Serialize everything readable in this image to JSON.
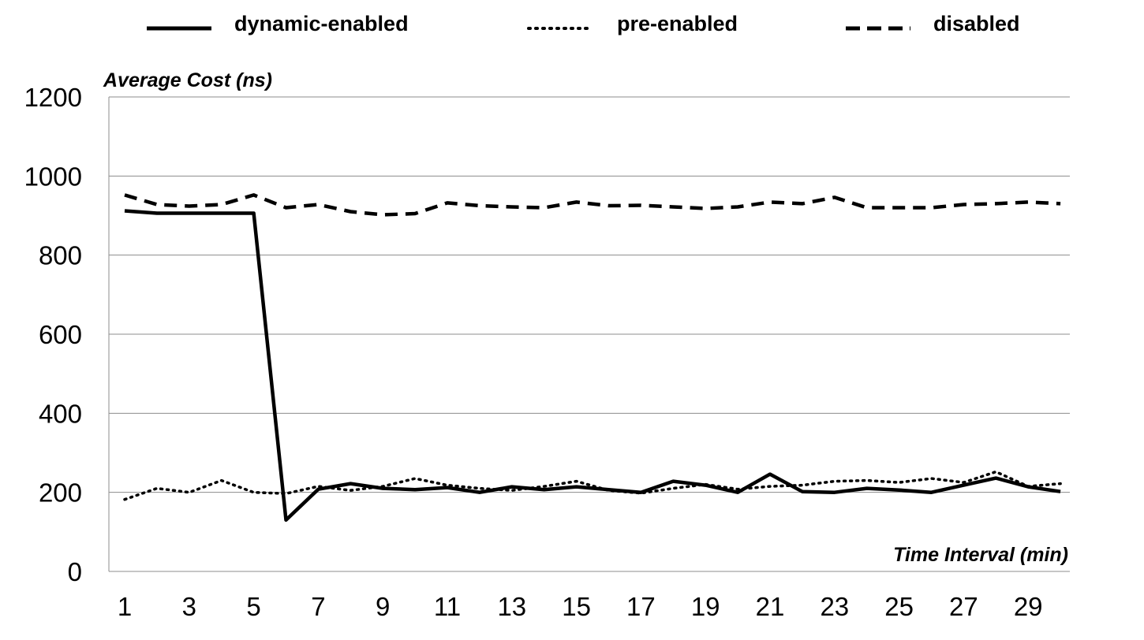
{
  "chart_data": {
    "type": "line",
    "title": "",
    "xlabel": "Time Interval (min)",
    "ylabel": "Average Cost (ns)",
    "ylim": [
      0,
      1200
    ],
    "y_ticks": [
      "0",
      "200",
      "400",
      "600",
      "800",
      "1000",
      "1200"
    ],
    "x": [
      1,
      2,
      3,
      4,
      5,
      6,
      7,
      8,
      9,
      10,
      11,
      12,
      13,
      14,
      15,
      16,
      17,
      18,
      19,
      20,
      21,
      22,
      23,
      24,
      25,
      26,
      27,
      28,
      29,
      30
    ],
    "x_tick_labels": [
      "1",
      "3",
      "5",
      "7",
      "9",
      "11",
      "13",
      "15",
      "17",
      "19",
      "21",
      "23",
      "25",
      "27",
      "29"
    ],
    "grid": "horizontal",
    "legend_position": "top",
    "series": [
      {
        "name": "dynamic-enabled",
        "style": "solid",
        "color": "#000000",
        "values": [
          912,
          906,
          906,
          906,
          906,
          130,
          208,
          222,
          210,
          207,
          212,
          200,
          214,
          207,
          214,
          207,
          200,
          228,
          218,
          200,
          246,
          202,
          200,
          210,
          206,
          200,
          218,
          236,
          214,
          202
        ]
      },
      {
        "name": "pre-enabled",
        "style": "dotted",
        "color": "#000000",
        "values": [
          182,
          210,
          200,
          230,
          200,
          197,
          215,
          205,
          215,
          235,
          218,
          210,
          205,
          215,
          228,
          205,
          198,
          210,
          220,
          208,
          215,
          218,
          228,
          230,
          225,
          235,
          225,
          252,
          215,
          222
        ]
      },
      {
        "name": "disabled",
        "style": "dashed",
        "color": "#000000",
        "values": [
          952,
          928,
          924,
          928,
          952,
          920,
          928,
          910,
          902,
          905,
          932,
          925,
          922,
          920,
          934,
          925,
          926,
          922,
          918,
          922,
          934,
          930,
          946,
          920,
          920,
          920,
          928,
          930,
          934,
          930
        ]
      }
    ]
  }
}
